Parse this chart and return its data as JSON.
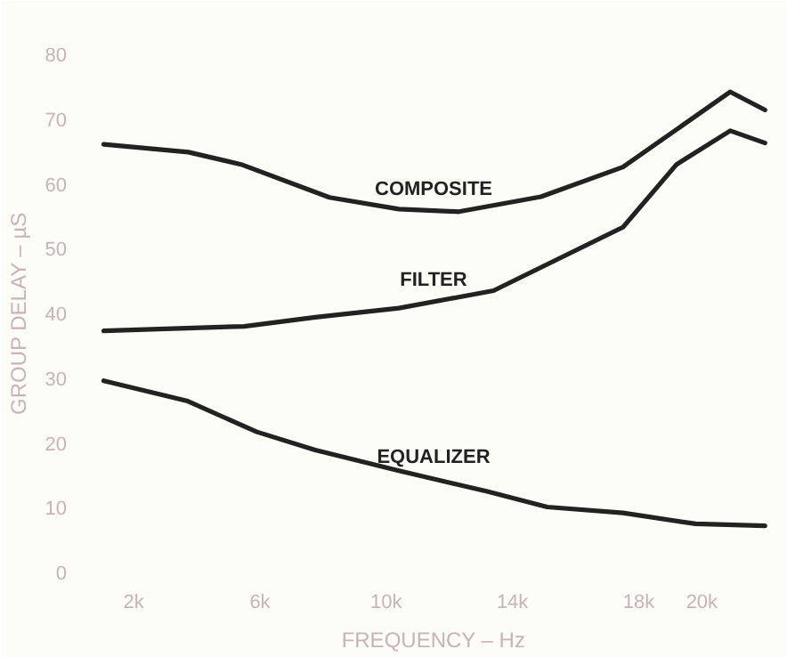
{
  "chart_data": {
    "type": "line",
    "xlabel": "FREQUENCY – Hz",
    "ylabel": "GROUP DELAY – µS",
    "xlim": [
      0.5,
      22.5
    ],
    "ylim": [
      0,
      80
    ],
    "xticks": [
      {
        "value": 2,
        "label": "2k"
      },
      {
        "value": 6,
        "label": "6k"
      },
      {
        "value": 10,
        "label": "10k"
      },
      {
        "value": 14,
        "label": "14k"
      },
      {
        "value": 18,
        "label": "18k"
      },
      {
        "value": 20,
        "label": "20k"
      }
    ],
    "yticks": [
      0,
      10,
      20,
      30,
      40,
      50,
      60,
      70,
      80
    ],
    "grid": false,
    "marker": "none",
    "line_style": "solid",
    "series": [
      {
        "name": "COMPOSITE",
        "color": "#222222",
        "x": [
          1.05,
          3.73,
          5.4,
          8.2,
          10.4,
          12.3,
          14.9,
          17.5,
          20.9,
          22.0
        ],
        "values": [
          66.1,
          64.9,
          63,
          57.9,
          56.1,
          55.7,
          58,
          62.6,
          74.2,
          71.4
        ]
      },
      {
        "name": "FILTER",
        "color": "#222222",
        "x": [
          1.05,
          5.5,
          7.75,
          10.4,
          13.4,
          17.5,
          19.2,
          20.9,
          22.0
        ],
        "values": [
          37.3,
          38,
          39.4,
          40.8,
          43.5,
          53.3,
          63,
          68.2,
          66.3
        ]
      },
      {
        "name": "EQUALIZER",
        "color": "#222222",
        "x": [
          1.05,
          3.68,
          5.9,
          7.75,
          10.4,
          13.2,
          15.1,
          17.5,
          19.8,
          22.0
        ],
        "values": [
          29.6,
          26.5,
          21.7,
          18.9,
          15.7,
          12.5,
          10.1,
          9.2,
          7.5,
          7.2
        ]
      }
    ]
  }
}
